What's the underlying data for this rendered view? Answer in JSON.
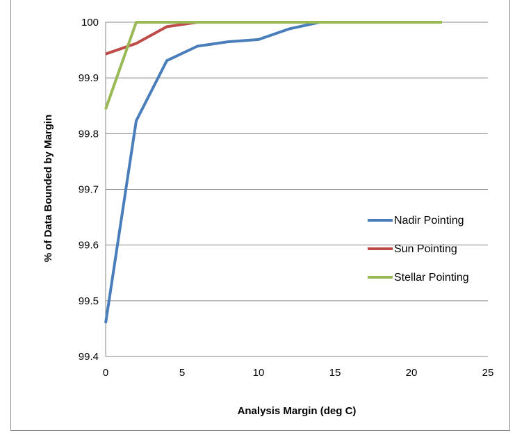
{
  "chart_data": {
    "type": "line",
    "title": "",
    "xlabel": "Analysis Margin  (deg C)",
    "ylabel": "% of Data Bounded by Margin",
    "xlim": [
      0,
      25
    ],
    "ylim": [
      99.4,
      100
    ],
    "xticks": [
      0,
      5,
      10,
      15,
      20,
      25
    ],
    "yticks": [
      99.4,
      99.5,
      99.6,
      99.7,
      99.8,
      99.9,
      100
    ],
    "ytick_labels": [
      "99.4",
      "99.5",
      "99.6",
      "99.7",
      "99.8",
      "99.9",
      "100"
    ],
    "grid": "horizontal",
    "legend_position": "right",
    "series": [
      {
        "name": "Nadir Pointing",
        "color": "#4a7ebb",
        "x": [
          0,
          2,
          4,
          6,
          8,
          10,
          12,
          14,
          16,
          18,
          20,
          22
        ],
        "y": [
          99.46,
          99.823,
          99.931,
          99.957,
          99.965,
          99.969,
          99.988,
          100,
          100,
          100,
          100,
          100
        ]
      },
      {
        "name": "Sun Pointing",
        "color": "#be4b48",
        "x": [
          0,
          2,
          4,
          6,
          8,
          10,
          12,
          14,
          16,
          18,
          20,
          22
        ],
        "y": [
          99.943,
          99.962,
          99.992,
          100,
          100,
          100,
          100,
          100,
          100,
          100,
          100,
          100
        ]
      },
      {
        "name": "Stellar Pointing",
        "color": "#98b954",
        "x": [
          0,
          2,
          4,
          6,
          8,
          10,
          12,
          14,
          16,
          18,
          20,
          22
        ],
        "y": [
          99.844,
          100,
          100,
          100,
          100,
          100,
          100,
          100,
          100,
          100,
          100,
          100
        ]
      }
    ]
  }
}
